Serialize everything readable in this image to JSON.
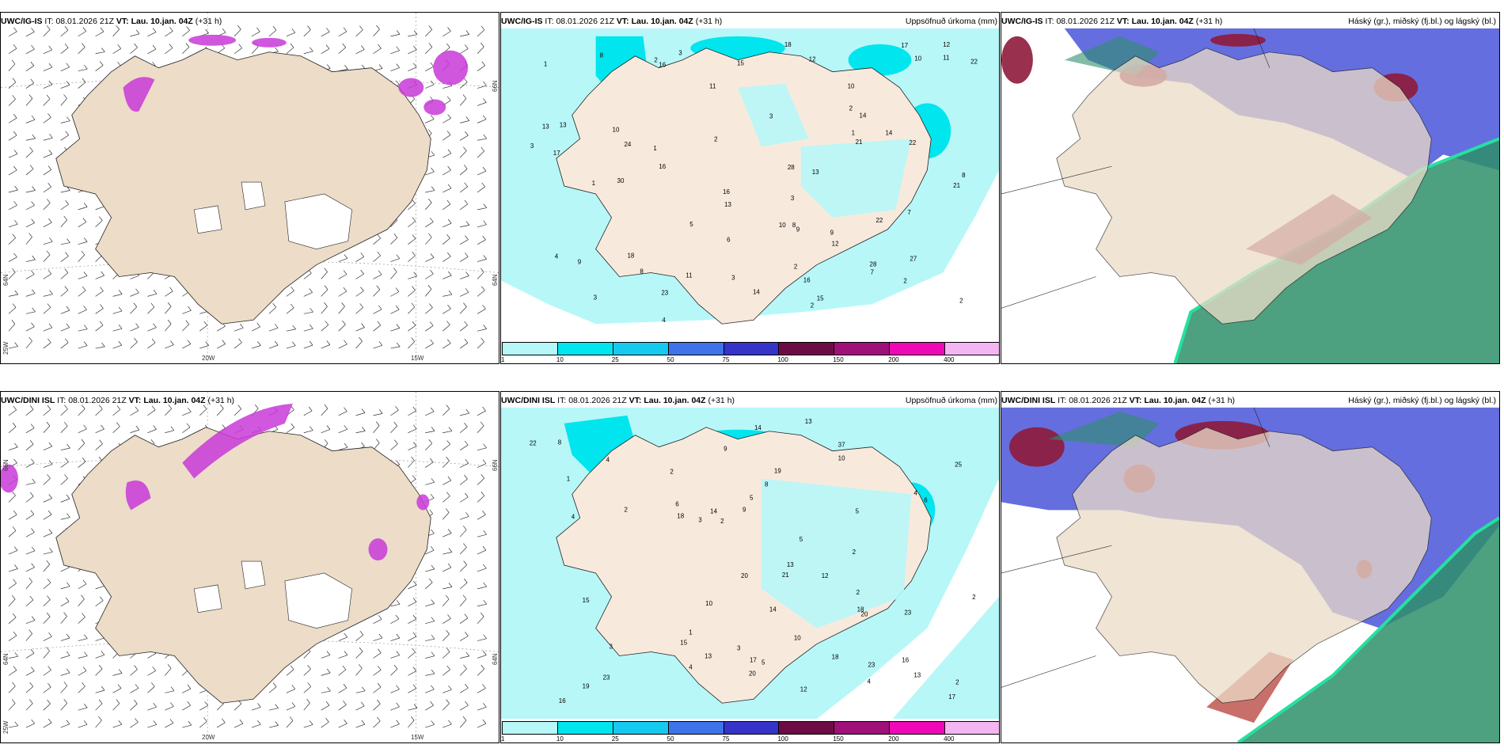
{
  "colors": {
    "land": "#ecdcc8",
    "precip_1": "#b7f7f8",
    "precip_10": "#00e5ee",
    "precip_25": "#16c9ee",
    "precip_50": "#3f73ea",
    "precip_75": "#3533c8",
    "precip_100": "#6d0b45",
    "precip_150": "#a01079",
    "precip_200": "#ee08b6",
    "precip_400": "#f4b6f3",
    "cloud_high": "#8e1a3a",
    "cloud_mid": "#4a55d8",
    "cloud_low": "#2e8f6a",
    "cloud_low_edge": "#26e0a0",
    "magenta": "#c83ad8"
  },
  "rows": [
    {
      "model": "UWC/IG-IS",
      "it_label": "IT:",
      "it_value": "08.01.2026 21Z",
      "vt_label": "VT:",
      "vt_value": "Lau. 10.jan. 04Z",
      "lead": "(+31 h)",
      "precip_title": "Uppsöfnuð úrkoma (mm)",
      "cloud_title": "Háský (gr.), miðský (fj.bl.) og lágský (bl.)",
      "wind_axis": {
        "lon1": "20W",
        "lon2": "15W",
        "lat1": "66N",
        "lat2": "64N",
        "lat3": "66N",
        "lat4": "64N",
        "lon_left": "25W"
      },
      "precip_values": [
        "15",
        "16",
        "18",
        "10",
        "14",
        "16",
        "21",
        "16",
        "13",
        "8",
        "9",
        "13",
        "16",
        "8",
        "21",
        "17",
        "17",
        "10",
        "22",
        "22",
        "28",
        "9",
        "23",
        "7",
        "13",
        "14",
        "30",
        "24",
        "14",
        "11",
        "12",
        "12",
        "10",
        "11",
        "3",
        "3",
        "18",
        "13",
        "8",
        "9",
        "15",
        "28",
        "22",
        "27",
        "12",
        "7",
        "10",
        "6",
        "3",
        "11",
        "5",
        "3",
        "1",
        "2",
        "1",
        "2",
        "2",
        "2",
        "4",
        "4",
        "3",
        "2",
        "1",
        "1",
        "2",
        "3",
        "8",
        "2"
      ]
    },
    {
      "model": "UWC/DINI ISL",
      "it_label": "IT:",
      "it_value": "08.01.2026 21Z",
      "vt_label": "VT:",
      "vt_value": "Lau. 10.jan. 04Z",
      "lead": "(+31 h)",
      "precip_title": "Uppsöfnuð úrkoma (mm)",
      "cloud_title": "Háský (gr.), miðský (fj.bl.) og lágský (bl.)",
      "wind_axis": {
        "lon1": "20W",
        "lon2": "15W",
        "lat1": "66N",
        "lat2": "64N",
        "lat3": "66N",
        "lat4": "64N",
        "lon_left": "25W"
      },
      "precip_values": [
        "19",
        "23",
        "13",
        "14",
        "9",
        "13",
        "16",
        "37",
        "23",
        "15",
        "17",
        "18",
        "13",
        "14",
        "18",
        "6",
        "18",
        "15",
        "20",
        "25",
        "22",
        "23",
        "20",
        "12",
        "20",
        "10",
        "14",
        "8",
        "6",
        "10",
        "13",
        "10",
        "19",
        "16",
        "21",
        "12",
        "17",
        "5",
        "4",
        "3",
        "2",
        "1",
        "2",
        "4",
        "2",
        "3",
        "5",
        "5",
        "2",
        "2",
        "1",
        "9",
        "8",
        "4",
        "3",
        "4",
        "4",
        "2",
        "5",
        "2"
      ]
    }
  ],
  "colorbar": {
    "ticks": [
      "1",
      "10",
      "25",
      "50",
      "75",
      "100",
      "150",
      "200",
      "400"
    ]
  }
}
